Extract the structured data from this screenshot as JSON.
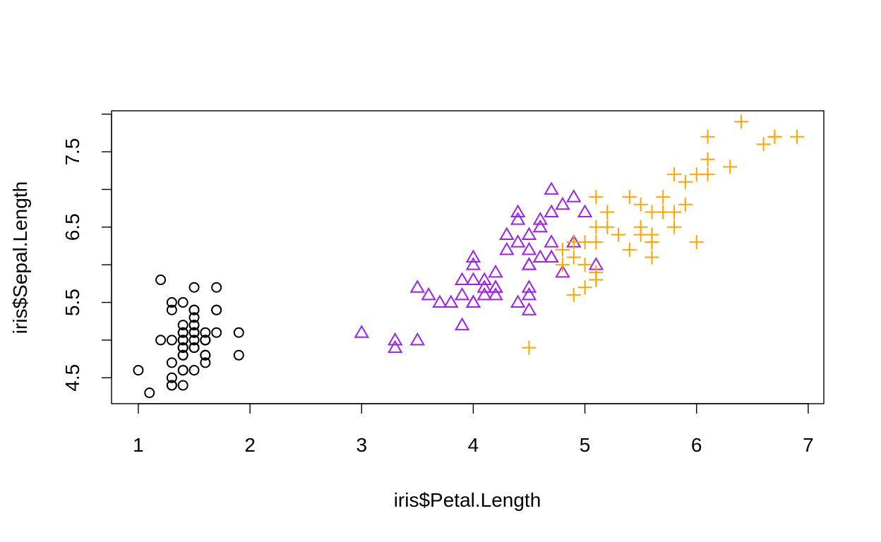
{
  "chart_data": {
    "type": "scatter",
    "title": "",
    "xlabel": "iris$Petal.Length",
    "ylabel": "iris$Sepal.Length",
    "xlim": [
      0.76,
      7.14
    ],
    "ylim": [
      4.156,
      8.044
    ],
    "x_ticks": [
      1,
      2,
      3,
      4,
      5,
      6,
      7
    ],
    "y_ticks": [
      4.5,
      5,
      5.5,
      6,
      6.5,
      7,
      7.5,
      8
    ],
    "y_tick_labels": [
      "4.5",
      "",
      "5.5",
      "",
      "6.5",
      "",
      "7.5",
      ""
    ],
    "grid": false,
    "legend": "none",
    "series": [
      {
        "marker": "circle",
        "color": "#000000",
        "points": [
          [
            1.4,
            5.1
          ],
          [
            1.4,
            4.9
          ],
          [
            1.3,
            4.7
          ],
          [
            1.5,
            4.6
          ],
          [
            1.4,
            5.0
          ],
          [
            1.7,
            5.4
          ],
          [
            1.4,
            4.6
          ],
          [
            1.5,
            5.0
          ],
          [
            1.4,
            4.4
          ],
          [
            1.5,
            4.9
          ],
          [
            1.5,
            5.4
          ],
          [
            1.6,
            4.8
          ],
          [
            1.4,
            4.8
          ],
          [
            1.1,
            4.3
          ],
          [
            1.2,
            5.8
          ],
          [
            1.5,
            5.7
          ],
          [
            1.3,
            5.4
          ],
          [
            1.4,
            5.1
          ],
          [
            1.7,
            5.7
          ],
          [
            1.5,
            5.1
          ],
          [
            1.7,
            5.4
          ],
          [
            1.5,
            5.1
          ],
          [
            1.0,
            4.6
          ],
          [
            1.7,
            5.1
          ],
          [
            1.9,
            4.8
          ],
          [
            1.6,
            5.0
          ],
          [
            1.6,
            5.0
          ],
          [
            1.5,
            5.2
          ],
          [
            1.4,
            5.2
          ],
          [
            1.6,
            4.7
          ],
          [
            1.6,
            4.8
          ],
          [
            1.5,
            5.4
          ],
          [
            1.5,
            5.2
          ],
          [
            1.4,
            5.5
          ],
          [
            1.5,
            4.9
          ],
          [
            1.2,
            5.0
          ],
          [
            1.3,
            5.5
          ],
          [
            1.4,
            4.9
          ],
          [
            1.3,
            4.4
          ],
          [
            1.5,
            5.1
          ],
          [
            1.3,
            5.0
          ],
          [
            1.3,
            4.5
          ],
          [
            1.3,
            4.4
          ],
          [
            1.6,
            5.0
          ],
          [
            1.9,
            5.1
          ],
          [
            1.4,
            4.8
          ],
          [
            1.6,
            5.1
          ],
          [
            1.4,
            4.6
          ],
          [
            1.5,
            5.3
          ],
          [
            1.4,
            5.0
          ]
        ]
      },
      {
        "marker": "triangle",
        "color": "#a020f0",
        "points": [
          [
            4.7,
            7.0
          ],
          [
            4.5,
            6.4
          ],
          [
            4.9,
            6.9
          ],
          [
            4.0,
            5.5
          ],
          [
            4.6,
            6.5
          ],
          [
            4.5,
            5.7
          ],
          [
            4.7,
            6.3
          ],
          [
            3.3,
            4.9
          ],
          [
            4.6,
            6.6
          ],
          [
            3.9,
            5.2
          ],
          [
            3.5,
            5.0
          ],
          [
            4.2,
            5.9
          ],
          [
            4.0,
            6.0
          ],
          [
            4.7,
            6.1
          ],
          [
            3.6,
            5.6
          ],
          [
            4.4,
            6.7
          ],
          [
            4.5,
            5.6
          ],
          [
            4.1,
            5.8
          ],
          [
            4.5,
            6.2
          ],
          [
            3.9,
            5.6
          ],
          [
            4.8,
            5.9
          ],
          [
            4.0,
            6.1
          ],
          [
            4.9,
            6.3
          ],
          [
            4.7,
            6.1
          ],
          [
            4.3,
            6.4
          ],
          [
            4.4,
            6.6
          ],
          [
            4.8,
            6.8
          ],
          [
            5.0,
            6.7
          ],
          [
            4.5,
            6.0
          ],
          [
            3.5,
            5.7
          ],
          [
            3.8,
            5.5
          ],
          [
            3.7,
            5.5
          ],
          [
            3.9,
            5.8
          ],
          [
            5.1,
            6.0
          ],
          [
            4.5,
            5.4
          ],
          [
            4.5,
            6.0
          ],
          [
            4.7,
            6.7
          ],
          [
            4.4,
            6.3
          ],
          [
            4.1,
            5.6
          ],
          [
            4.0,
            5.5
          ],
          [
            4.4,
            5.5
          ],
          [
            4.6,
            6.1
          ],
          [
            4.0,
            5.8
          ],
          [
            3.3,
            5.0
          ],
          [
            4.2,
            5.6
          ],
          [
            4.2,
            5.7
          ],
          [
            4.2,
            5.7
          ],
          [
            4.3,
            6.2
          ],
          [
            3.0,
            5.1
          ],
          [
            4.1,
            5.7
          ]
        ]
      },
      {
        "marker": "plus",
        "color": "#ffa500",
        "points": [
          [
            6.0,
            6.3
          ],
          [
            5.1,
            5.8
          ],
          [
            5.9,
            7.1
          ],
          [
            5.6,
            6.3
          ],
          [
            5.8,
            6.5
          ],
          [
            6.6,
            7.6
          ],
          [
            4.5,
            4.9
          ],
          [
            6.3,
            7.3
          ],
          [
            5.8,
            6.7
          ],
          [
            6.1,
            7.2
          ],
          [
            5.1,
            6.5
          ],
          [
            5.3,
            6.4
          ],
          [
            5.5,
            6.8
          ],
          [
            5.0,
            5.7
          ],
          [
            5.1,
            5.8
          ],
          [
            5.3,
            6.4
          ],
          [
            5.5,
            6.5
          ],
          [
            6.7,
            7.7
          ],
          [
            6.9,
            7.7
          ],
          [
            5.0,
            6.0
          ],
          [
            5.7,
            6.9
          ],
          [
            4.9,
            5.6
          ],
          [
            6.7,
            7.7
          ],
          [
            4.9,
            6.3
          ],
          [
            5.7,
            6.7
          ],
          [
            6.0,
            7.2
          ],
          [
            4.8,
            6.2
          ],
          [
            4.9,
            6.1
          ],
          [
            5.6,
            6.4
          ],
          [
            5.8,
            7.2
          ],
          [
            6.1,
            7.4
          ],
          [
            6.4,
            7.9
          ],
          [
            5.6,
            6.4
          ],
          [
            5.1,
            6.3
          ],
          [
            5.6,
            6.1
          ],
          [
            6.1,
            7.7
          ],
          [
            5.6,
            6.3
          ],
          [
            5.5,
            6.4
          ],
          [
            4.8,
            6.0
          ],
          [
            5.4,
            6.9
          ],
          [
            5.6,
            6.7
          ],
          [
            5.1,
            6.9
          ],
          [
            5.1,
            5.8
          ],
          [
            5.9,
            6.8
          ],
          [
            5.7,
            6.7
          ],
          [
            5.2,
            6.7
          ],
          [
            5.0,
            6.3
          ],
          [
            5.2,
            6.5
          ],
          [
            5.4,
            6.2
          ],
          [
            5.1,
            5.9
          ]
        ]
      }
    ]
  }
}
